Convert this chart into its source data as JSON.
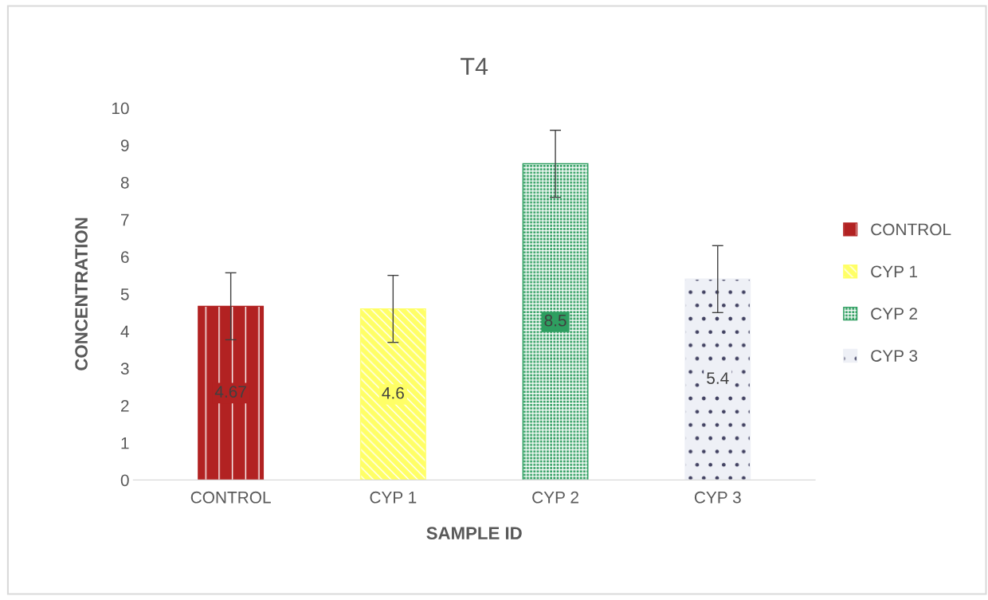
{
  "chart_data": {
    "type": "bar",
    "title": "T4",
    "xlabel": "SAMPLE ID",
    "ylabel": "CONCENTRATION",
    "categories": [
      "CONTROL",
      "CYP 1",
      "CYP 2",
      "CYP 3"
    ],
    "series": [
      {
        "name": "CONTROL",
        "color": "#b22222",
        "values": [
          4.67,
          null,
          null,
          null
        ],
        "errors": [
          0.9,
          null,
          null,
          null
        ]
      },
      {
        "name": "CYP 1",
        "color": "#ffff66",
        "values": [
          null,
          4.6,
          null,
          null
        ],
        "errors": [
          null,
          0.9,
          null,
          null
        ]
      },
      {
        "name": "CYP 2",
        "color": "#2e9e60",
        "values": [
          null,
          null,
          8.5,
          null
        ],
        "errors": [
          null,
          null,
          0.9,
          null
        ]
      },
      {
        "name": "CYP 3",
        "color": "#eef0f6",
        "values": [
          null,
          null,
          null,
          5.4
        ],
        "errors": [
          null,
          null,
          null,
          0.9
        ]
      }
    ],
    "ylim": [
      0,
      10
    ],
    "yticks": [
      0,
      1,
      2,
      3,
      4,
      5,
      6,
      7,
      8,
      9,
      10
    ],
    "data_labels": true,
    "grid": false,
    "legend": "right"
  }
}
